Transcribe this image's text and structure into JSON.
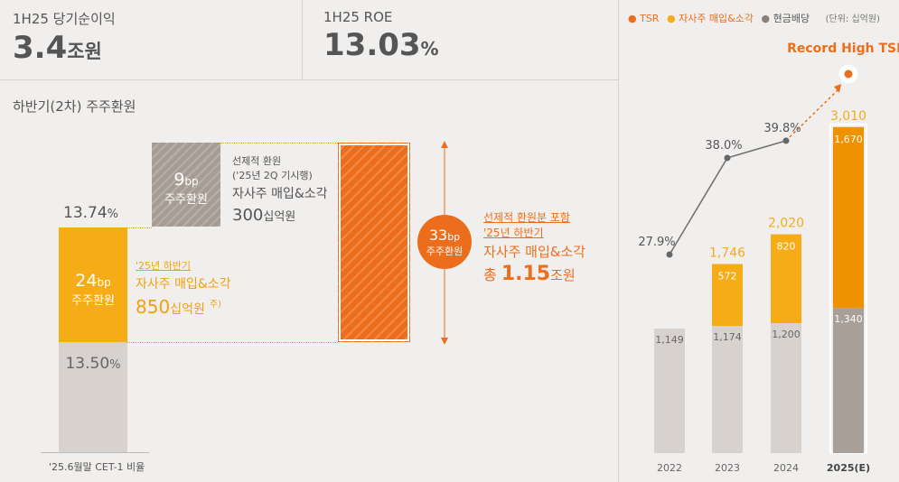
{
  "stats": {
    "net_income": {
      "label": "1H25 당기순이익",
      "value": "3.4",
      "unit": "조원"
    },
    "roe": {
      "label": "1H25 ROE",
      "value": "13.03",
      "unit": "%"
    }
  },
  "section_title": "하반기(2차) 주주환원",
  "waterfall": {
    "cet1_top": {
      "value": "13.74",
      "unit": "%"
    },
    "cet1_bottom": {
      "value": "13.50",
      "unit": "%"
    },
    "h2_return": {
      "bp": "24",
      "bp_unit": "bp",
      "sub": "주주환원"
    },
    "early_return": {
      "bp": "9",
      "bp_unit": "bp",
      "sub": "주주환원"
    },
    "total_return": {
      "bp": "33",
      "bp_unit": "bp",
      "sub": "주주환원"
    },
    "x_label": "'25.6월말 CET-1 비율",
    "early_note": {
      "line1": "선제적 환원",
      "line2": "('25년 2Q 기시행)",
      "line3": "자사주 매입&소각",
      "amount": "300",
      "amount_unit": "십억원"
    },
    "h2_note": {
      "line1": "'25년 하반기",
      "line2": "자사주 매입&소각",
      "amount": "850",
      "amount_unit": "십억원",
      "footnote": "주)"
    },
    "total_note": {
      "line1": "선제적 환원분 포함",
      "line2": "'25년 하반기",
      "line3": "자사주 매입&소각",
      "prefix": "총",
      "amount": "1.15",
      "amount_unit": "조원"
    }
  },
  "chart_data": {
    "type": "bar",
    "legend": [
      "TSR",
      "자사주 매입&소각",
      "현금배당"
    ],
    "unit_note": "(단위: 십억원)",
    "categories": [
      "2022",
      "2023",
      "2024",
      "2025(E)"
    ],
    "series": [
      {
        "name": "현금배당",
        "values": [
          1149,
          1174,
          1200,
          1340
        ]
      },
      {
        "name": "자사주 매입&소각",
        "values": [
          0,
          572,
          820,
          1670
        ]
      }
    ],
    "totals": [
      null,
      1746,
      2020,
      3010
    ],
    "tsr": {
      "name": "TSR",
      "values": [
        27.9,
        38.0,
        39.8,
        null
      ]
    },
    "annotation": "Record High TSR",
    "ylim": [
      0,
      3300
    ],
    "colors": {
      "cash": "#d7d2ce",
      "cash_highlight": "#a79f98",
      "buyback": "#f5ac17",
      "buyback_highlight": "#ef9200",
      "tsr_line": "#6e6e6e",
      "tsr_dot": "#ec6e1c"
    }
  }
}
